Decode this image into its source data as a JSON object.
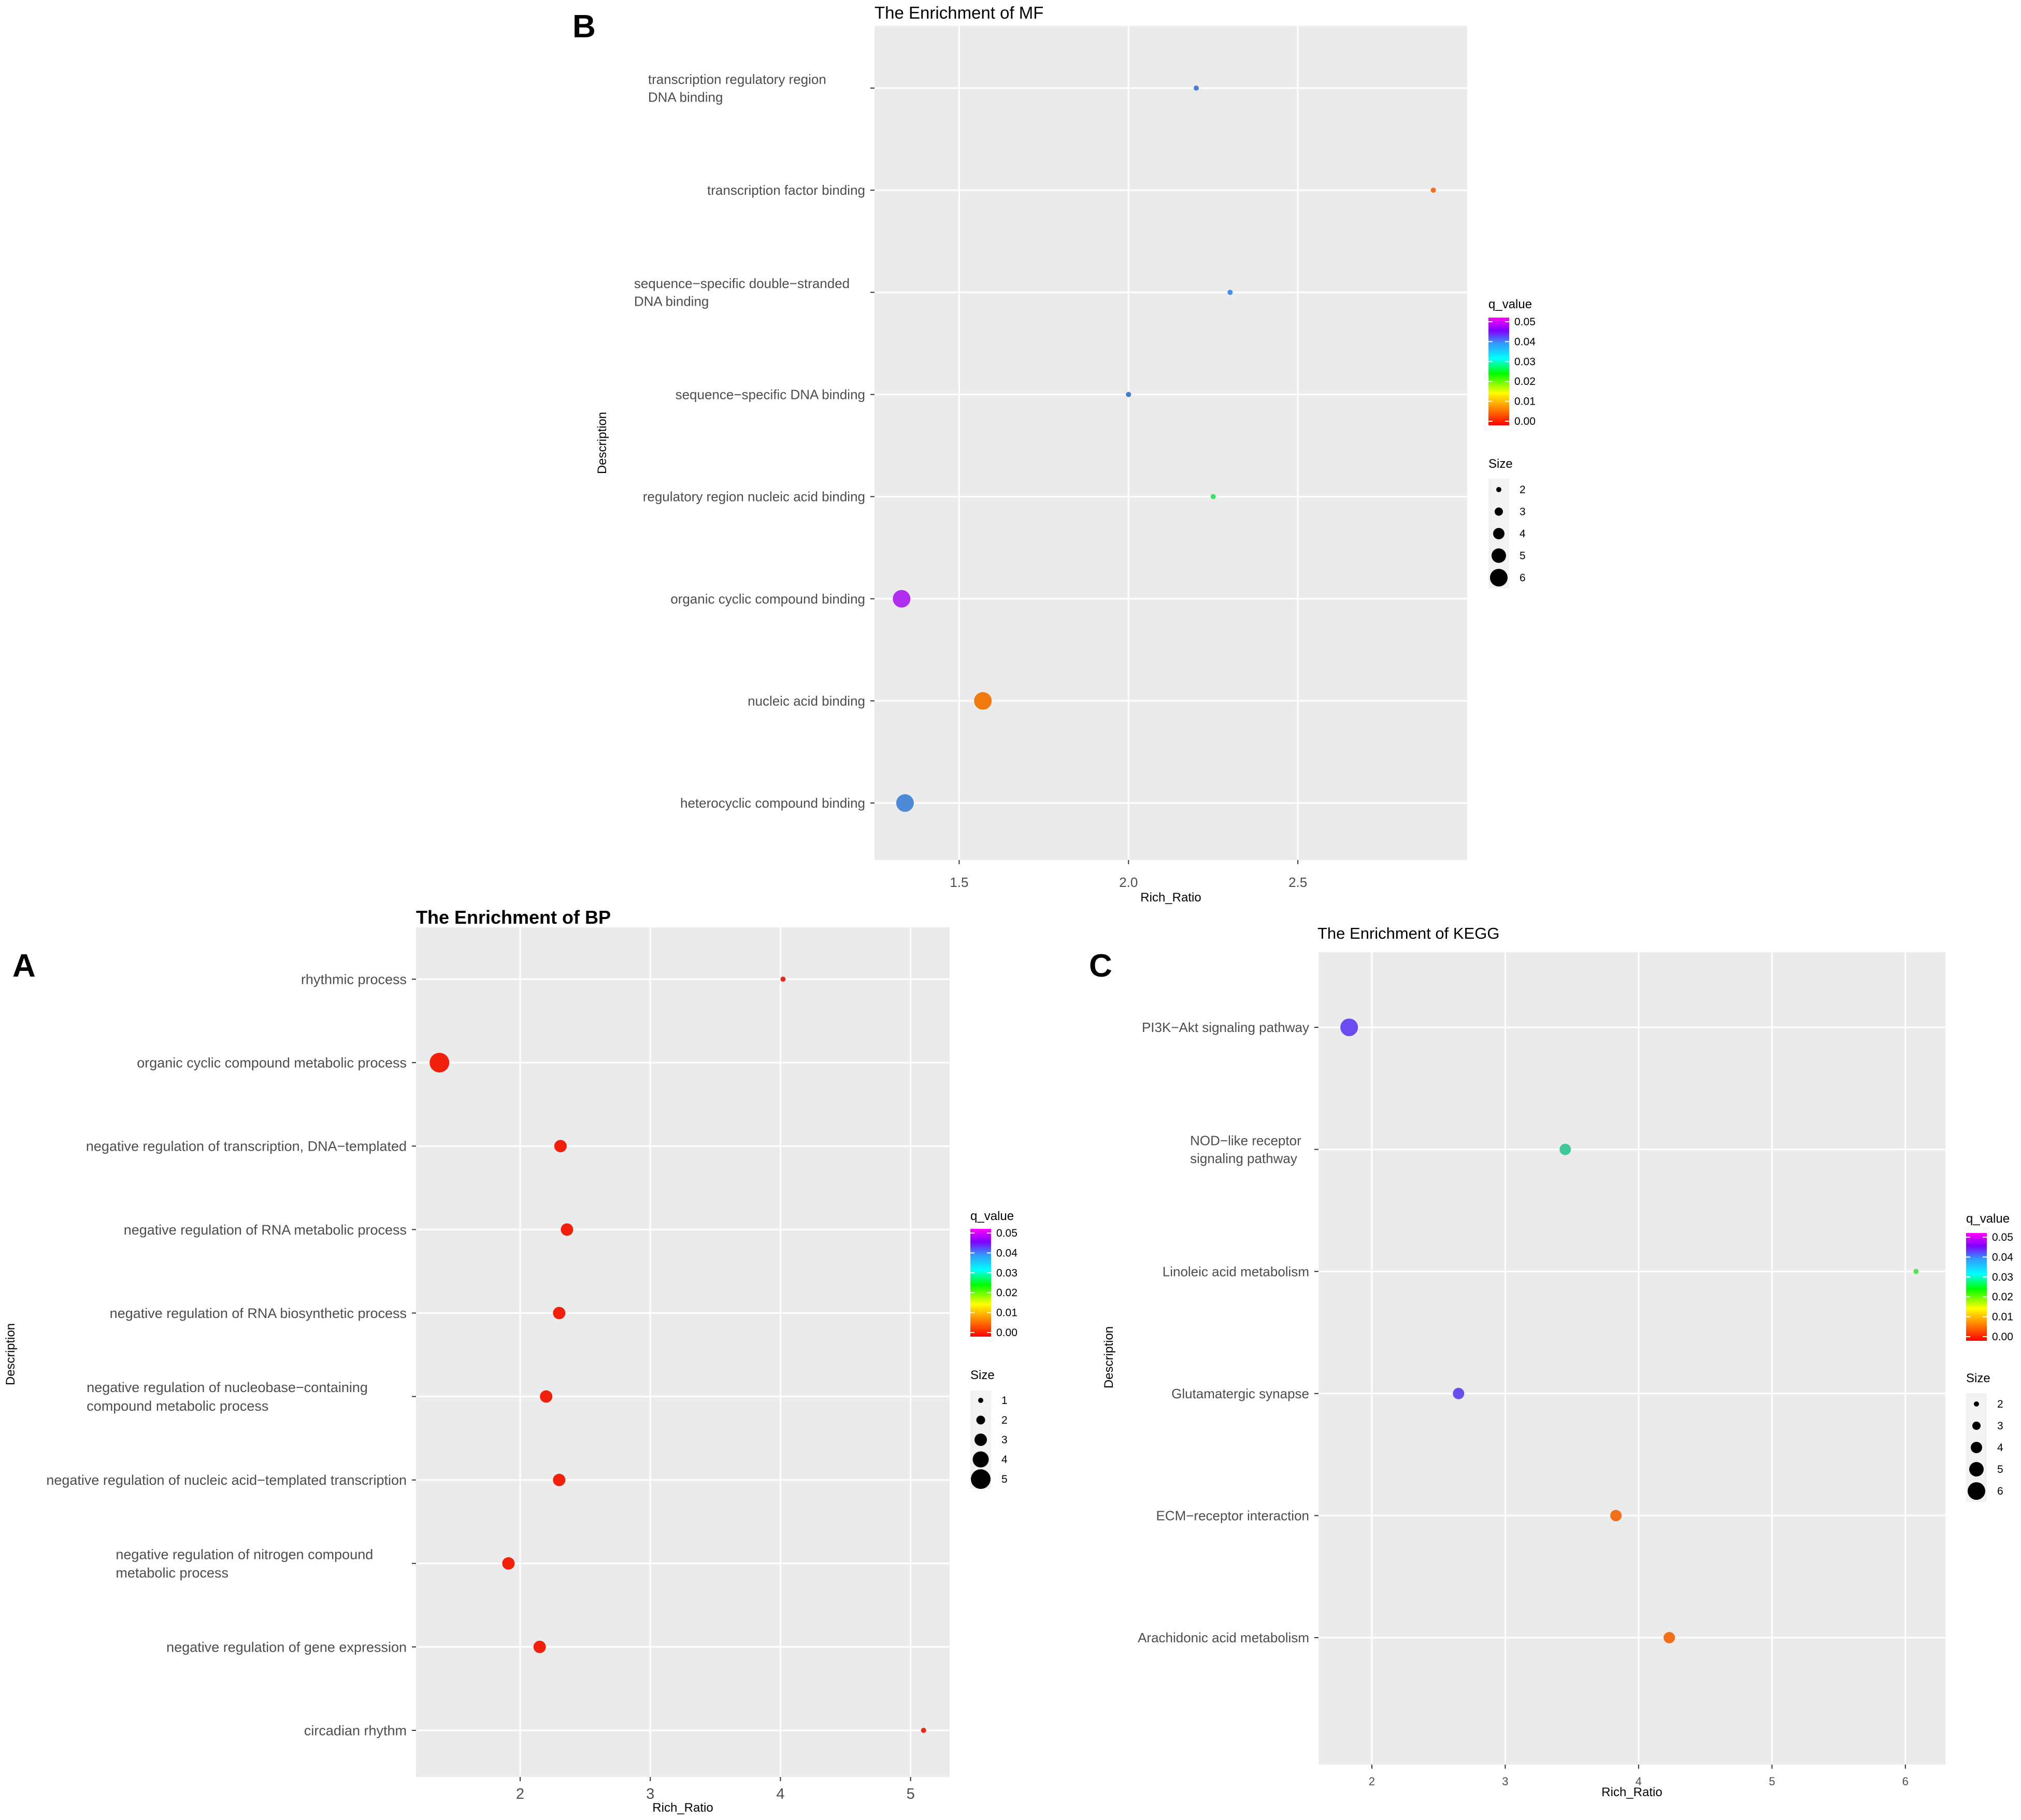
{
  "figure": {
    "colors": {
      "panel_bg": "#ebebeb",
      "grid_major": "#ffffff",
      "tick_mark": "#333333",
      "size_key_bg": "#f2f2f2",
      "gradient": [
        "#ff0000",
        "#ff8000",
        "#ffff00",
        "#00ff00",
        "#00ffff",
        "#3399ff",
        "#8000ff",
        "#ff00ff"
      ]
    }
  },
  "chart_data": [
    {
      "panel": "B",
      "type": "scatter",
      "title": "The Enrichment of MF",
      "xlabel": "Rich_Ratio",
      "ylabel": "Description",
      "xlim": [
        1.25,
        3.0
      ],
      "x_ticks": [
        "1.5",
        "2.0",
        "2.5"
      ],
      "x_tick_values": [
        1.5,
        2.0,
        2.5
      ],
      "categories": [
        [
          "transcription regulatory region",
          "DNA binding"
        ],
        [
          "transcription factor binding"
        ],
        [
          "sequence−specific double−stranded",
          "DNA binding"
        ],
        [
          "sequence−specific DNA binding"
        ],
        [
          "regulatory region nucleic acid binding"
        ],
        [
          "organic cyclic compound binding"
        ],
        [
          "nucleic acid binding"
        ],
        [
          "heterocyclic compound binding"
        ]
      ],
      "points": [
        {
          "x": 2.2,
          "size": 2,
          "color": "#4a7fd9"
        },
        {
          "x": 2.9,
          "size": 2,
          "color": "#f07018"
        },
        {
          "x": 2.3,
          "size": 2,
          "color": "#4a8de0"
        },
        {
          "x": 2.0,
          "size": 2,
          "color": "#3b7fd1"
        },
        {
          "x": 2.25,
          "size": 2,
          "color": "#40e060"
        },
        {
          "x": 1.33,
          "size": 6,
          "color": "#b02ef0"
        },
        {
          "x": 1.57,
          "size": 6,
          "color": "#f07a10"
        },
        {
          "x": 1.34,
          "size": 6,
          "color": "#4e8ad8"
        }
      ],
      "legend": {
        "color_title": "q_value",
        "color_ticks": [
          "0.05",
          "0.04",
          "0.03",
          "0.02",
          "0.01",
          "0.00"
        ],
        "size_title": "Size",
        "size_values": [
          "2",
          "3",
          "4",
          "5",
          "6"
        ]
      }
    },
    {
      "panel": "A",
      "type": "scatter",
      "title": "The Enrichment of BP",
      "xlabel": "Rich_Ratio",
      "ylabel": "Description",
      "xlim": [
        1.2,
        5.3
      ],
      "x_ticks": [
        "2",
        "3",
        "4",
        "5"
      ],
      "x_tick_values": [
        2,
        3,
        4,
        5
      ],
      "categories": [
        [
          "rhythmic process"
        ],
        [
          "organic cyclic compound metabolic process"
        ],
        [
          "negative regulation of transcription, DNA−templated"
        ],
        [
          "negative regulation of RNA metabolic process"
        ],
        [
          "negative regulation of RNA biosynthetic process"
        ],
        [
          "negative regulation of nucleobase−containing",
          "compound metabolic process"
        ],
        [
          "negative regulation of nucleic acid−templated transcription"
        ],
        [
          "negative regulation of nitrogen compound",
          "metabolic process"
        ],
        [
          "negative regulation of gene expression"
        ],
        [
          "circadian rhythm"
        ]
      ],
      "points": [
        {
          "x": 4.02,
          "size": 1,
          "color": "#e8291a"
        },
        {
          "x": 1.38,
          "size": 5,
          "color": "#f0200d"
        },
        {
          "x": 2.31,
          "size": 3,
          "color": "#f0200d"
        },
        {
          "x": 2.36,
          "size": 3,
          "color": "#f0200d"
        },
        {
          "x": 2.3,
          "size": 3,
          "color": "#f0200d"
        },
        {
          "x": 2.2,
          "size": 3,
          "color": "#f0200d"
        },
        {
          "x": 2.3,
          "size": 3,
          "color": "#f0200d"
        },
        {
          "x": 1.91,
          "size": 3,
          "color": "#f0200d"
        },
        {
          "x": 2.15,
          "size": 3,
          "color": "#f0200d"
        },
        {
          "x": 5.1,
          "size": 1,
          "color": "#e8291a"
        }
      ],
      "legend": {
        "color_title": "q_value",
        "color_ticks": [
          "0.05",
          "0.04",
          "0.03",
          "0.02",
          "0.01",
          "0.00"
        ],
        "size_title": "Size",
        "size_values": [
          "1",
          "2",
          "3",
          "4",
          "5"
        ]
      }
    },
    {
      "panel": "C",
      "type": "scatter",
      "title": "The Enrichment of KEGG",
      "xlabel": "Rich_Ratio",
      "ylabel": "Description",
      "xlim": [
        1.6,
        6.3
      ],
      "x_ticks": [
        "2",
        "3",
        "4",
        "5",
        "6"
      ],
      "x_tick_values": [
        2,
        3,
        4,
        5,
        6
      ],
      "categories": [
        [
          "PI3K−Akt signaling pathway"
        ],
        [
          "NOD−like receptor",
          "signaling pathway"
        ],
        [
          "Linoleic acid metabolism"
        ],
        [
          "Glutamatergic synapse"
        ],
        [
          "ECM−receptor interaction"
        ],
        [
          "Arachidonic acid metabolism"
        ]
      ],
      "points": [
        {
          "x": 1.83,
          "size": 6,
          "color": "#6a4cf0"
        },
        {
          "x": 3.45,
          "size": 4,
          "color": "#40c89a"
        },
        {
          "x": 6.08,
          "size": 2,
          "color": "#58e058"
        },
        {
          "x": 2.65,
          "size": 4,
          "color": "#6a4cf0"
        },
        {
          "x": 3.83,
          "size": 4,
          "color": "#f0701a"
        },
        {
          "x": 4.23,
          "size": 4,
          "color": "#f0701a"
        }
      ],
      "legend": {
        "color_title": "q_value",
        "color_ticks": [
          "0.05",
          "0.04",
          "0.03",
          "0.02",
          "0.01",
          "0.00"
        ],
        "size_title": "Size",
        "size_values": [
          "2",
          "3",
          "4",
          "5",
          "6"
        ]
      }
    }
  ]
}
